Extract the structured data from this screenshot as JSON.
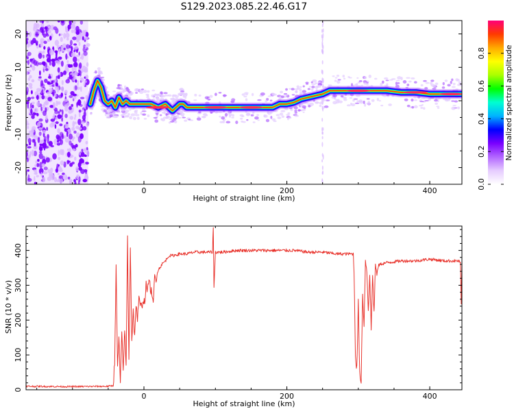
{
  "figure": {
    "title": "S129.2023.085.22.46.G17"
  },
  "chart_data": [
    {
      "type": "heatmap",
      "xlabel": "Height of straight line (km)",
      "ylabel": "Frequency (Hz)",
      "xlim": [
        -165,
        445
      ],
      "ylim": [
        -25,
        24
      ],
      "x_ticks": [
        0,
        200,
        400
      ],
      "y_ticks": [
        -20,
        -10,
        0,
        10,
        20
      ],
      "noise_region_x": [
        -165,
        -78
      ],
      "ridge": {
        "x": [
          -75,
          -70,
          -65,
          -60,
          -55,
          -50,
          -45,
          -40,
          -35,
          -30,
          -25,
          -20,
          -10,
          0,
          10,
          20,
          30,
          40,
          45,
          50,
          55,
          60,
          80,
          100,
          120,
          140,
          160,
          180,
          190,
          200,
          210,
          220,
          230,
          240,
          250,
          260,
          280,
          300,
          320,
          340,
          360,
          380,
          400,
          420,
          445
        ],
        "freq": [
          -1,
          3,
          6,
          4,
          0,
          -1,
          0,
          -2,
          1,
          -1,
          0,
          -1,
          -1,
          -1,
          -1,
          -2,
          -1,
          -3,
          -2,
          -1,
          -1,
          -2,
          -2,
          -2,
          -2,
          -2,
          -2,
          -2,
          -1,
          -1,
          -0.5,
          0.5,
          1,
          1.5,
          2,
          3,
          3,
          3,
          3,
          3,
          2.5,
          2.5,
          2,
          2,
          2
        ]
      },
      "colorbar": {
        "label": "Normalized spectral amplitude",
        "range": [
          0.0,
          1.0
        ],
        "ticks": [
          "0.0",
          "0.2",
          "0.4",
          "0.6",
          "0.8"
        ],
        "colors": [
          "#ffffff",
          "#e6ccff",
          "#b266ff",
          "#7a00ff",
          "#0000ff",
          "#00b4ff",
          "#00ffd2",
          "#00ff00",
          "#aaff00",
          "#ffff00",
          "#ffaa00",
          "#ff3a00",
          "#ff0078"
        ]
      },
      "colors": {
        "noise": "#7a00ff",
        "noise_light": "#d9b8ff"
      }
    },
    {
      "type": "line",
      "xlabel": "Height of straight line (km)",
      "ylabel": "SNR (10 * v/v)",
      "xlim": [
        -165,
        445
      ],
      "ylim": [
        0,
        470
      ],
      "x_ticks": [
        0,
        200,
        400
      ],
      "y_ticks": [
        0,
        100,
        200,
        300,
        400
      ],
      "series": [
        {
          "color": "#e8322b",
          "x": [
            -165,
            -100,
            -50,
            -43,
            -41,
            -39,
            -37,
            -35,
            -33,
            -31,
            -29,
            -27,
            -25,
            -23,
            -21,
            -19,
            -17,
            -15,
            -13,
            -11,
            -9,
            -7,
            -5,
            -3,
            -1,
            1,
            3,
            5,
            7,
            9,
            11,
            13,
            15,
            17,
            19,
            22,
            25,
            30,
            35,
            40,
            50,
            60,
            70,
            80,
            90,
            96,
            97,
            98,
            100,
            110,
            130,
            150,
            170,
            190,
            210,
            230,
            250,
            270,
            290,
            293,
            294,
            296,
            298,
            300,
            302,
            304,
            306,
            308,
            310,
            312,
            314,
            316,
            318,
            320,
            322,
            324,
            326,
            328,
            330,
            340,
            360,
            380,
            400,
            420,
            440,
            443,
            444,
            445
          ],
          "values": [
            10,
            9,
            10,
            12,
            80,
            355,
            60,
            150,
            20,
            160,
            50,
            180,
            60,
            440,
            80,
            410,
            140,
            230,
            150,
            250,
            200,
            260,
            240,
            240,
            260,
            250,
            300,
            280,
            320,
            290,
            280,
            240,
            330,
            310,
            340,
            350,
            360,
            370,
            385,
            385,
            390,
            390,
            395,
            395,
            395,
            395,
            470,
            290,
            395,
            395,
            400,
            400,
            400,
            400,
            400,
            395,
            395,
            390,
            390,
            390,
            340,
            100,
            60,
            250,
            40,
            30,
            270,
            190,
            370,
            340,
            230,
            330,
            175,
            330,
            220,
            360,
            330,
            355,
            360,
            365,
            370,
            370,
            375,
            370,
            370,
            365,
            240,
            360
          ]
        }
      ]
    }
  ]
}
